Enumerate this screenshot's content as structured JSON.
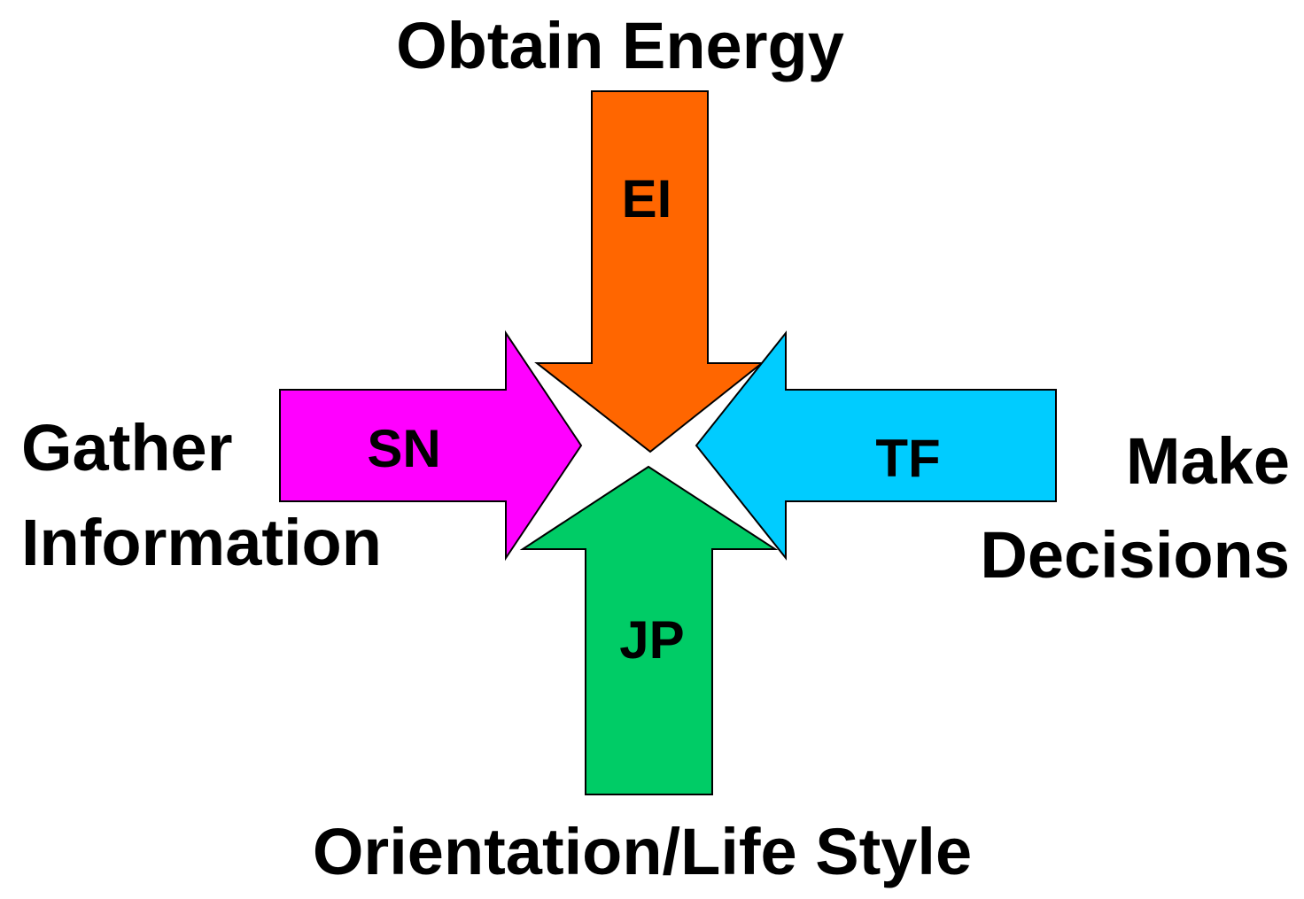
{
  "labels": {
    "top": "Obtain Energy",
    "left_line1": "Gather",
    "left_line2": "Information",
    "right_line1": "Make",
    "right_line2": "Decisions",
    "bottom": "Orientation/Life Style"
  },
  "arrows": {
    "top": {
      "code": "EI",
      "color": "#FF6600"
    },
    "left": {
      "code": "SN",
      "color": "#FF00FF"
    },
    "right": {
      "code": "TF",
      "color": "#00CCFF"
    },
    "bottom": {
      "code": "JP",
      "color": "#00CC66"
    }
  }
}
